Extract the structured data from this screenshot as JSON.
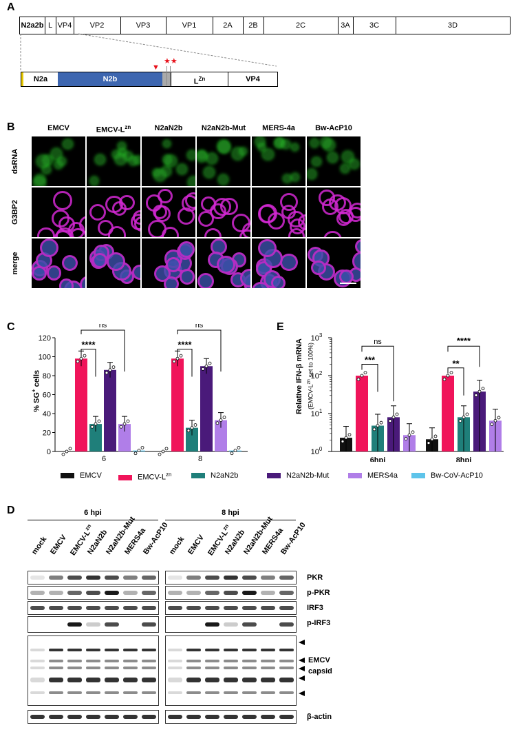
{
  "panel_labels": {
    "a": "A",
    "b": "B",
    "c": "C",
    "d": "D",
    "e": "E"
  },
  "genome": {
    "segments": [
      "N2a2b",
      "L",
      "VP4",
      "VP2",
      "VP3",
      "VP1",
      "2A",
      "2B",
      "2C",
      "3A",
      "3C",
      "3D"
    ],
    "zoom_segments": [
      "N2a",
      "N2b",
      "VP4"
    ],
    "lzn_main": "L",
    "lzn_sup": "Zn",
    "markers": {
      "triangle": "▼",
      "stars": "★★"
    }
  },
  "microscopy": {
    "columns": [
      {
        "main": "EMCV",
        "sup": ""
      },
      {
        "main": "EMCV-L",
        "sup": "zn"
      },
      {
        "main": "N2aN2b",
        "sup": ""
      },
      {
        "main": "N2aN2b-Mut",
        "sup": ""
      },
      {
        "main": "MERS-4a",
        "sup": ""
      },
      {
        "main": "Bw-AcP10",
        "sup": ""
      }
    ],
    "rows": [
      "dsRNA",
      "G3BP2",
      "merge"
    ]
  },
  "chart_data": [
    {
      "type": "bar",
      "panel": "C",
      "ylabel_pre": "% SG",
      "ylabel_sup": "+",
      "ylabel_post": " cells",
      "ylim": [
        0,
        120
      ],
      "yticks": [
        "0",
        "20",
        "40",
        "60",
        "80",
        "100",
        "120"
      ],
      "categories": [
        "6",
        "8"
      ],
      "series": [
        {
          "name": "EMCV",
          "values": [
            0,
            0
          ]
        },
        {
          "name": "EMCV-Lzn",
          "values": [
            98,
            98
          ]
        },
        {
          "name": "N2aN2b",
          "values": [
            29,
            25
          ]
        },
        {
          "name": "N2aN2b-Mut",
          "values": [
            86,
            90
          ]
        },
        {
          "name": "MERS4a",
          "values": [
            29,
            33
          ]
        },
        {
          "name": "Bw-CoV-AcP10",
          "values": [
            1,
            1
          ]
        }
      ],
      "significance": [
        {
          "category": "6",
          "label": "****",
          "pair": [
            "EMCV-Lzn",
            "N2aN2b"
          ]
        },
        {
          "category": "6",
          "label": "ns",
          "pair": [
            "EMCV-Lzn",
            "MERS4a"
          ]
        },
        {
          "category": "8",
          "label": "****",
          "pair": [
            "EMCV-Lzn",
            "N2aN2b"
          ]
        },
        {
          "category": "8",
          "label": "ns",
          "pair": [
            "EMCV-Lzn",
            "MERS4a"
          ]
        }
      ],
      "grid": false
    },
    {
      "type": "bar",
      "panel": "E",
      "ylabel": "Relative IFN-β mRNA",
      "ylabel2_pre": "(EMCV-L",
      "ylabel2_sup": "zn",
      "ylabel2_post": " set to 100%)",
      "yscale": "log",
      "ylim": [
        1,
        1000
      ],
      "yticks": [
        {
          "b": "10",
          "e": "0"
        },
        {
          "b": "10",
          "e": "1"
        },
        {
          "b": "10",
          "e": "2"
        },
        {
          "b": "10",
          "e": "3"
        }
      ],
      "categories": [
        "6hpi",
        "8hpi"
      ],
      "series": [
        {
          "name": "EMCV",
          "values": [
            2.3,
            2.1
          ]
        },
        {
          "name": "EMCV-Lzn",
          "values": [
            100,
            100
          ]
        },
        {
          "name": "N2aN2b",
          "values": [
            4.8,
            8
          ]
        },
        {
          "name": "N2aN2b-Mut",
          "values": [
            8,
            38
          ]
        }
      ],
      "extra_series": {
        "name": "MERS4a",
        "values": [
          2.7,
          6.5
        ]
      },
      "significance": [
        {
          "category": "6hpi",
          "label": "***"
        },
        {
          "category": "6hpi",
          "label": "ns"
        },
        {
          "category": "8hpi",
          "label": "**"
        },
        {
          "category": "8hpi",
          "label": "****"
        }
      ],
      "grid": false
    }
  ],
  "legend": [
    {
      "name": "EMCV",
      "sup": "",
      "color": "#111111"
    },
    {
      "name": "EMCV-L",
      "sup": "zn",
      "color": "#f0145a"
    },
    {
      "name": "N2aN2b",
      "sup": "",
      "color": "#1f7f7a"
    },
    {
      "name": "N2aN2b-Mut",
      "sup": "",
      "color": "#4a1a7a"
    },
    {
      "name": "MERS4a",
      "sup": "",
      "color": "#b07ee8"
    },
    {
      "name": "Bw-CoV-AcP10",
      "sup": "",
      "color": "#5ec4ea"
    }
  ],
  "western": {
    "times": [
      "6 hpi",
      "8 hpi"
    ],
    "lanes": [
      {
        "main": "mock",
        "sup": ""
      },
      {
        "main": "EMCV",
        "sup": ""
      },
      {
        "main": "EMCV-L",
        "sup": "zn"
      },
      {
        "main": "N2aN2b",
        "sup": ""
      },
      {
        "main": "N2aN2b-Mut",
        "sup": ""
      },
      {
        "main": "MERS4a",
        "sup": ""
      },
      {
        "main": "Bw-AcP10",
        "sup": ""
      }
    ],
    "labels": [
      "PKR",
      "p-PKR",
      "IRF3",
      "p-IRF3",
      "β-actin"
    ],
    "capsid_label": [
      "EMCV",
      "capsid"
    ]
  }
}
